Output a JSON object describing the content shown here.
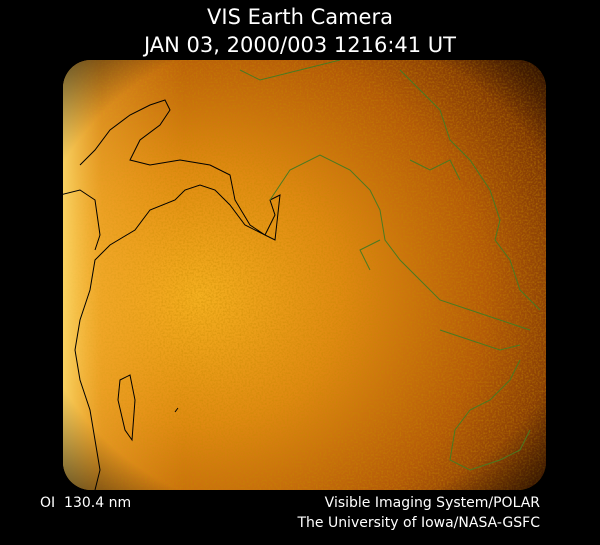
{
  "header": {
    "title": "VIS Earth Camera",
    "timestamp": "JAN 03, 2000/003 1216:41 UT"
  },
  "footer": {
    "band": "OI  130.4 nm",
    "instrument": "Visible Imaging System/POLAR",
    "credit": "The University of Iowa/NASA-GSFC"
  }
}
